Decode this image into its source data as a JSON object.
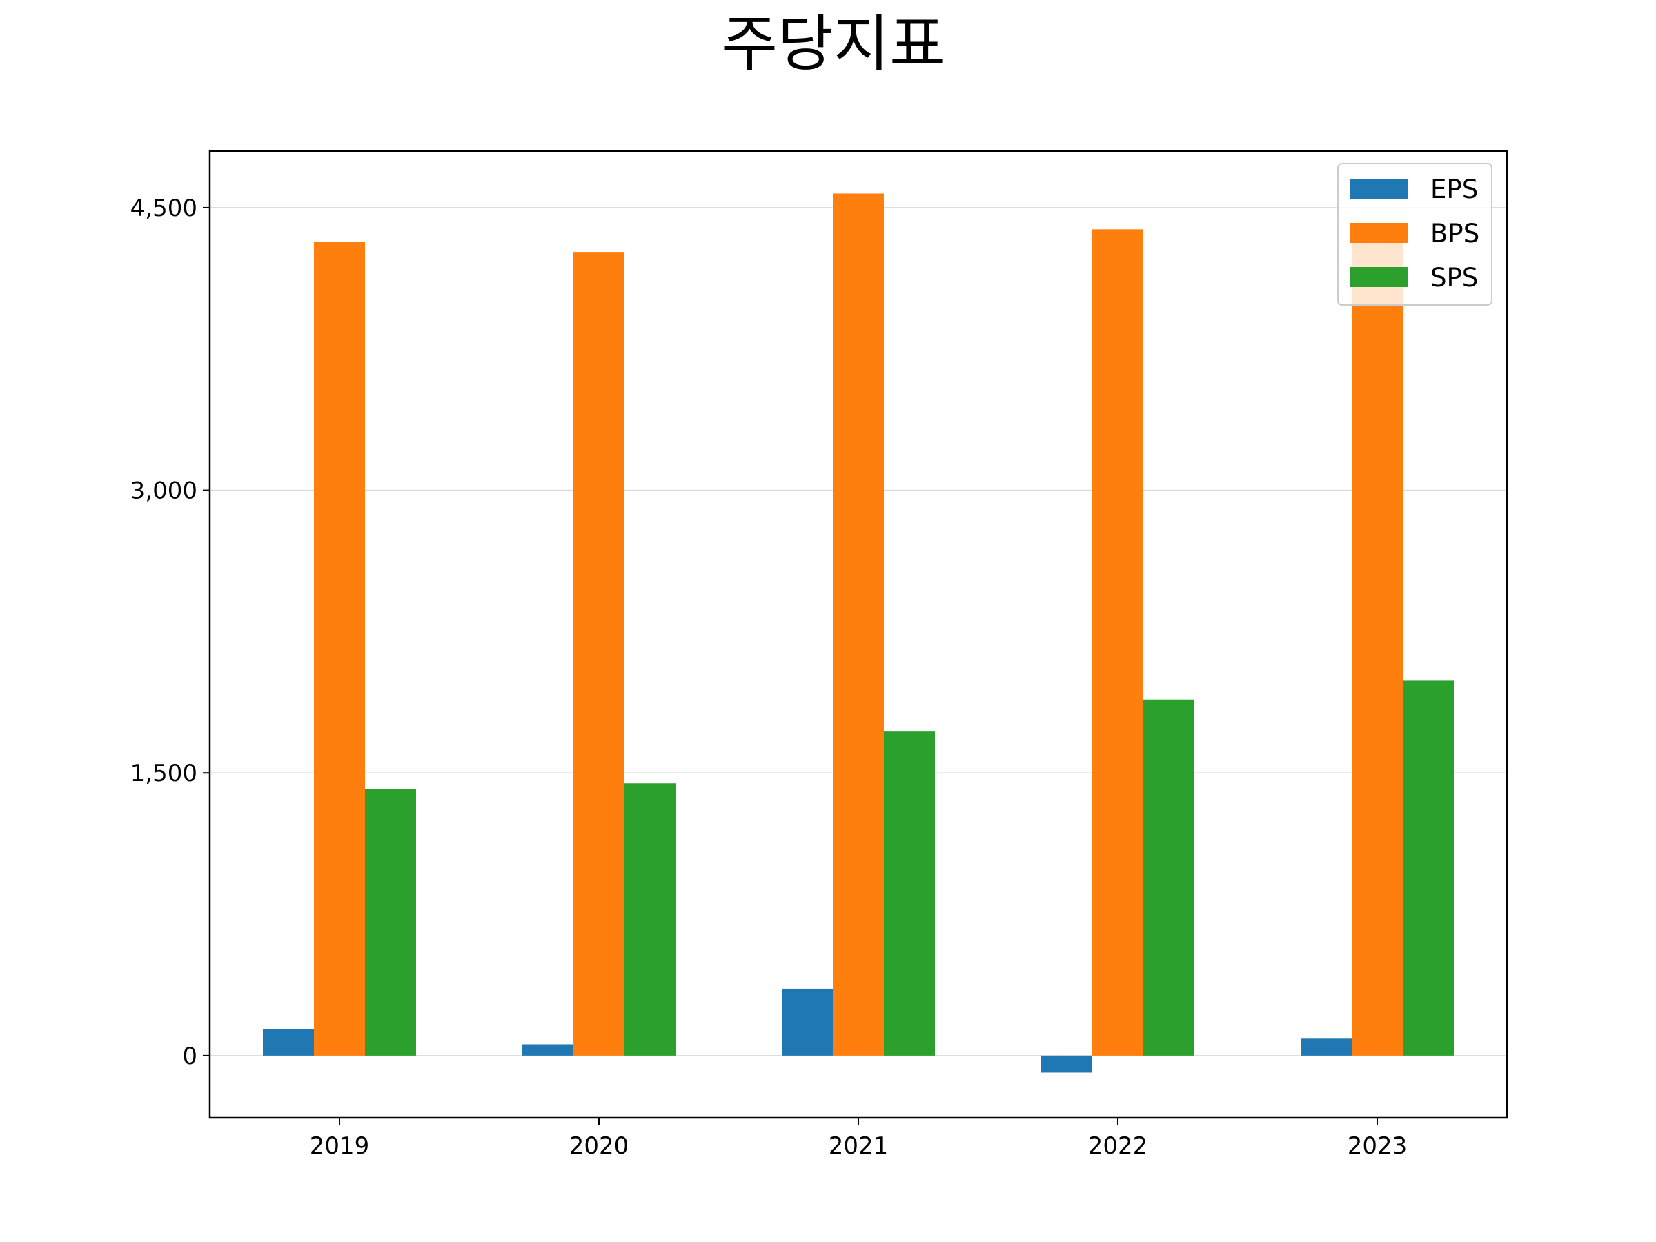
{
  "chart_data": {
    "type": "bar",
    "title": "주당지표",
    "xlabel": "",
    "ylabel": "",
    "categories": [
      "2019",
      "2020",
      "2021",
      "2022",
      "2023"
    ],
    "series": [
      {
        "name": "EPS",
        "color": "#1f77b4",
        "values": [
          140,
          60,
          355,
          -90,
          90
        ]
      },
      {
        "name": "BPS",
        "color": "#ff7f0e",
        "values": [
          4320,
          4265,
          4575,
          4385,
          4380
        ]
      },
      {
        "name": "SPS",
        "color": "#2ca02c",
        "values": [
          1415,
          1445,
          1720,
          1890,
          1990
        ]
      }
    ],
    "ylim": [
      -330,
      4800
    ],
    "yticks": [
      0,
      1500,
      3000,
      4500
    ],
    "ytick_labels": [
      "0",
      "1,500",
      "3,000",
      "4,500"
    ],
    "grid": "y",
    "legend": "top-right"
  }
}
